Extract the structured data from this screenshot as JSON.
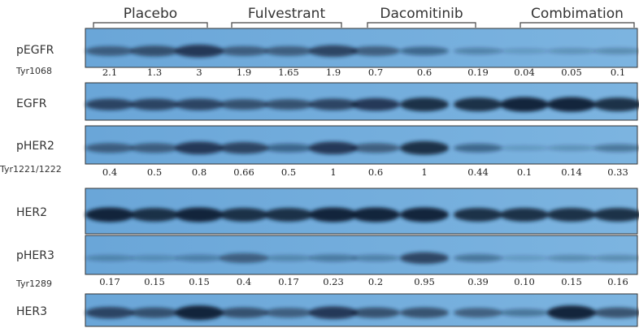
{
  "groups": [
    "Placebo",
    "Fulvestrant",
    "Dacomitinib",
    "Combimation"
  ],
  "blots": [
    {
      "label": "pEGFR",
      "site": "Tyr1068",
      "values": [
        "2.1",
        "1.3",
        "3",
        "1.9",
        "1.65",
        "1.9",
        "0.7",
        "0.6",
        "0.19",
        "0.04",
        "0.05",
        "0.1"
      ]
    },
    {
      "label": "EGFR"
    },
    {
      "label": "pHER2",
      "site": "Tyr1221/1222",
      "values": [
        "0.4",
        "0.5",
        "0.8",
        "0.66",
        "0.5",
        "1",
        "0.6",
        "1",
        "0.44",
        "0.1",
        "0.14",
        "0.33"
      ]
    },
    {
      "label": "HER2"
    },
    {
      "label": "pHER3",
      "site": "Tyr1289",
      "values": [
        "0.17",
        "0.15",
        "0.15",
        "0.4",
        "0.17",
        "0.23",
        "0.2",
        "0.95",
        "0.39",
        "0.10",
        "0.15",
        "0.16"
      ]
    },
    {
      "label": "HER3"
    }
  ]
}
